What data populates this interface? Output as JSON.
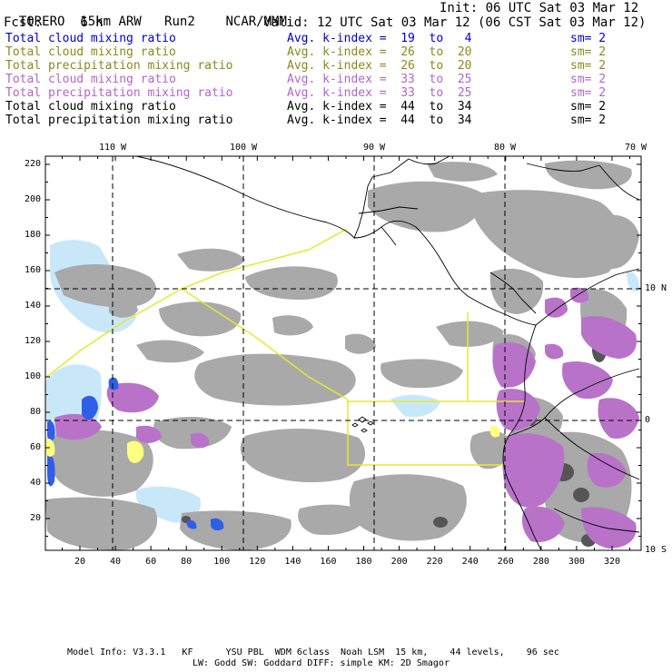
{
  "header": {
    "model": "TORERO",
    "resolution": "15km ARW",
    "run": "Run2",
    "org": "NCAR/MMM",
    "init": "Init: 06 UTC Sat 03 Mar 12",
    "fcst_label": "Fcst:",
    "fcst_value": "6 h",
    "valid": "Valid: 12 UTC Sat 03 Mar 12 (06 CST Sat 03 Mar 12)"
  },
  "legend": [
    {
      "field": "Total cloud mixing ratio",
      "kindex": "Avg. k-index =  19  to   4",
      "sm": "sm= 2",
      "color": "#0000cc"
    },
    {
      "field": "Total cloud mixing ratio",
      "kindex": "Avg. k-index =  26  to  20",
      "sm": "sm= 2",
      "color": "#8a8a1a"
    },
    {
      "field": "Total precipitation mixing ratio",
      "kindex": "Avg. k-index =  26  to  20",
      "sm": "sm= 2",
      "color": "#8a8a1a"
    },
    {
      "field": "Total cloud mixing ratio",
      "kindex": "Avg. k-index =  33  to  25",
      "sm": "sm= 2",
      "color": "#b565c8"
    },
    {
      "field": "Total precipitation mixing ratio",
      "kindex": "Avg. k-index =  33  to  25",
      "sm": "sm= 2",
      "color": "#b565c8"
    },
    {
      "field": "Total cloud mixing ratio",
      "kindex": "Avg. k-index =  44  to  34",
      "sm": "sm= 2",
      "color": "#000000"
    },
    {
      "field": "Total precipitation mixing ratio",
      "kindex": "Avg. k-index =  44  to  34",
      "sm": "sm= 2",
      "color": "#000000"
    }
  ],
  "axes": {
    "top_labels": [
      "110 W",
      "100 W",
      "90 W",
      "80 W",
      "70 W"
    ],
    "right_labels": [
      "10 N",
      "0",
      "10 S"
    ],
    "left_ticks": [
      "220",
      "200",
      "180",
      "160",
      "140",
      "120",
      "100",
      "80",
      "60",
      "40",
      "20"
    ],
    "bottom_ticks": [
      "20",
      "40",
      "60",
      "80",
      "100",
      "120",
      "140",
      "160",
      "180",
      "200",
      "220",
      "240",
      "260",
      "280",
      "300",
      "320"
    ]
  },
  "colors": {
    "cloud_gray": "#a9a9a9",
    "dark_gray": "#555555",
    "purple": "#b873c9",
    "light_blue": "#c8e8fa",
    "blue": "#2f5fe6",
    "yellow_fill": "#ffff80",
    "yellow_line": "#e8e830",
    "grid": "#000000"
  },
  "footer": {
    "line1": "Model Info: V3.3.1   KF      YSU PBL  WDM 6class  Noah LSM  15 km,    44 levels,    96 sec",
    "line2": "LW: Godd SW: Goddard DIFF: simple KM: 2D Smagor"
  }
}
